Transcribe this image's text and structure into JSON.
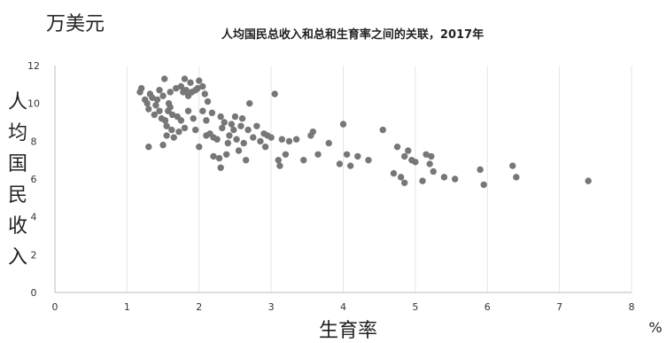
{
  "chart_data": {
    "type": "scatter",
    "title": "人均国民总收入和总和生育率之间的关联，2017年",
    "unit_label": "万美元",
    "xlabel": "生育率",
    "x_unit": "%",
    "ylabel": "人均国民收入",
    "xlim": [
      0,
      8
    ],
    "ylim": [
      0,
      12
    ],
    "x_ticks": [
      "0",
      "1",
      "2",
      "3",
      "4",
      "5",
      "6",
      "7",
      "8"
    ],
    "y_ticks": [
      "0",
      "2",
      "4",
      "6",
      "8",
      "10",
      "12"
    ],
    "grid": "vertical",
    "legend": "none",
    "point_color": "#777777",
    "points": [
      [
        1.18,
        10.6
      ],
      [
        1.2,
        10.8
      ],
      [
        1.25,
        10.2
      ],
      [
        1.28,
        10.0
      ],
      [
        1.3,
        9.7
      ],
      [
        1.3,
        7.7
      ],
      [
        1.32,
        10.5
      ],
      [
        1.35,
        10.3
      ],
      [
        1.38,
        9.4
      ],
      [
        1.4,
        9.9
      ],
      [
        1.42,
        10.2
      ],
      [
        1.45,
        10.7
      ],
      [
        1.45,
        9.6
      ],
      [
        1.48,
        9.2
      ],
      [
        1.5,
        10.4
      ],
      [
        1.5,
        7.8
      ],
      [
        1.52,
        11.3
      ],
      [
        1.53,
        9.1
      ],
      [
        1.55,
        8.8
      ],
      [
        1.55,
        8.3
      ],
      [
        1.57,
        9.6
      ],
      [
        1.58,
        10.0
      ],
      [
        1.6,
        9.8
      ],
      [
        1.6,
        10.6
      ],
      [
        1.62,
        8.6
      ],
      [
        1.63,
        9.4
      ],
      [
        1.65,
        8.2
      ],
      [
        1.68,
        10.8
      ],
      [
        1.7,
        9.3
      ],
      [
        1.72,
        8.5
      ],
      [
        1.75,
        10.9
      ],
      [
        1.75,
        9.1
      ],
      [
        1.78,
        10.6
      ],
      [
        1.8,
        11.3
      ],
      [
        1.8,
        8.7
      ],
      [
        1.82,
        10.7
      ],
      [
        1.85,
        9.6
      ],
      [
        1.85,
        10.4
      ],
      [
        1.88,
        11.1
      ],
      [
        1.9,
        10.6
      ],
      [
        1.92,
        9.2
      ],
      [
        1.95,
        10.7
      ],
      [
        1.95,
        8.6
      ],
      [
        1.98,
        10.8
      ],
      [
        2.0,
        11.2
      ],
      [
        2.0,
        7.7
      ],
      [
        2.05,
        10.9
      ],
      [
        2.05,
        9.6
      ],
      [
        2.08,
        10.5
      ],
      [
        2.1,
        9.1
      ],
      [
        2.1,
        8.3
      ],
      [
        2.12,
        10.1
      ],
      [
        2.15,
        8.4
      ],
      [
        2.18,
        9.5
      ],
      [
        2.2,
        8.2
      ],
      [
        2.2,
        7.2
      ],
      [
        2.25,
        8.1
      ],
      [
        2.28,
        7.1
      ],
      [
        2.3,
        6.6
      ],
      [
        2.3,
        9.3
      ],
      [
        2.32,
        8.7
      ],
      [
        2.35,
        9.0
      ],
      [
        2.38,
        7.3
      ],
      [
        2.4,
        7.9
      ],
      [
        2.42,
        8.3
      ],
      [
        2.45,
        8.9
      ],
      [
        2.48,
        8.6
      ],
      [
        2.5,
        9.3
      ],
      [
        2.52,
        8.1
      ],
      [
        2.55,
        7.5
      ],
      [
        2.58,
        8.8
      ],
      [
        2.6,
        9.2
      ],
      [
        2.62,
        7.9
      ],
      [
        2.65,
        7.0
      ],
      [
        2.68,
        8.6
      ],
      [
        2.7,
        10.0
      ],
      [
        2.75,
        8.2
      ],
      [
        2.8,
        8.8
      ],
      [
        2.85,
        8.0
      ],
      [
        2.9,
        8.4
      ],
      [
        2.92,
        7.7
      ],
      [
        2.95,
        8.3
      ],
      [
        3.0,
        8.2
      ],
      [
        3.05,
        10.5
      ],
      [
        3.1,
        7.0
      ],
      [
        3.12,
        6.7
      ],
      [
        3.15,
        8.1
      ],
      [
        3.2,
        7.3
      ],
      [
        3.25,
        8.0
      ],
      [
        3.35,
        8.1
      ],
      [
        3.45,
        7.0
      ],
      [
        3.55,
        8.3
      ],
      [
        3.58,
        8.5
      ],
      [
        3.65,
        7.3
      ],
      [
        3.8,
        7.9
      ],
      [
        3.95,
        6.8
      ],
      [
        4.0,
        8.9
      ],
      [
        4.05,
        7.3
      ],
      [
        4.1,
        6.7
      ],
      [
        4.2,
        7.2
      ],
      [
        4.35,
        7.0
      ],
      [
        4.55,
        8.6
      ],
      [
        4.7,
        6.3
      ],
      [
        4.75,
        7.7
      ],
      [
        4.8,
        6.1
      ],
      [
        4.85,
        7.2
      ],
      [
        4.85,
        5.8
      ],
      [
        4.9,
        7.5
      ],
      [
        4.95,
        7.0
      ],
      [
        5.0,
        6.9
      ],
      [
        5.1,
        5.9
      ],
      [
        5.15,
        7.3
      ],
      [
        5.2,
        6.8
      ],
      [
        5.22,
        7.2
      ],
      [
        5.25,
        6.4
      ],
      [
        5.4,
        6.1
      ],
      [
        5.55,
        6.0
      ],
      [
        5.9,
        6.5
      ],
      [
        5.95,
        5.7
      ],
      [
        6.35,
        6.7
      ],
      [
        6.4,
        6.1
      ],
      [
        7.4,
        5.9
      ]
    ]
  }
}
